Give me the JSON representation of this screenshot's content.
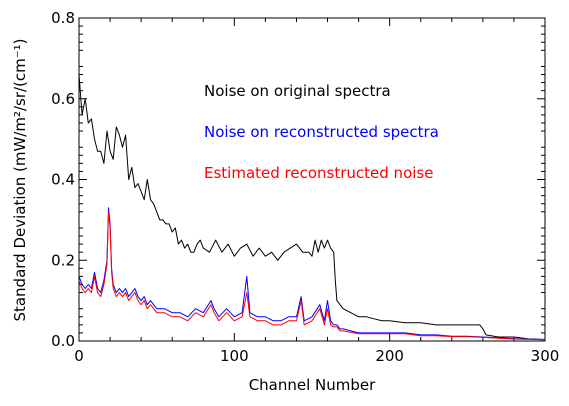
{
  "chart_data": {
    "type": "line",
    "xlabel": "Channel Number",
    "ylabel": "Standard Deviation (mW/m²/sr/(cm⁻¹)",
    "xlim": [
      0,
      300
    ],
    "ylim": [
      0,
      0.8
    ],
    "x_ticks": [
      0,
      100,
      200,
      300
    ],
    "x_tick_labels": [
      "0",
      "100",
      "200",
      "300"
    ],
    "y_ticks": [
      0,
      0.2,
      0.4,
      0.6,
      0.8
    ],
    "y_tick_labels": [
      "0.0",
      "0.2",
      "0.4",
      "0.6",
      "0.8"
    ],
    "grid": false,
    "legend_position": "inside-right, stacked text",
    "series": [
      {
        "name": "Noise on original spectra",
        "color": "#000000",
        "x": [
          0,
          2,
          4,
          6,
          8,
          10,
          12,
          14,
          16,
          18,
          20,
          22,
          24,
          26,
          28,
          30,
          32,
          34,
          36,
          38,
          40,
          42,
          44,
          46,
          48,
          50,
          52,
          54,
          56,
          58,
          60,
          62,
          64,
          66,
          68,
          70,
          72,
          74,
          76,
          78,
          80,
          84,
          88,
          92,
          96,
          100,
          104,
          108,
          112,
          116,
          120,
          124,
          128,
          132,
          136,
          140,
          144,
          148,
          150,
          152,
          154,
          156,
          158,
          160,
          162,
          164,
          165,
          166,
          170,
          175,
          180,
          185,
          190,
          195,
          200,
          210,
          220,
          230,
          240,
          250,
          258,
          260,
          262,
          270,
          280,
          290,
          300
        ],
        "y": [
          0.66,
          0.56,
          0.6,
          0.54,
          0.55,
          0.5,
          0.47,
          0.47,
          0.44,
          0.52,
          0.47,
          0.45,
          0.53,
          0.51,
          0.48,
          0.51,
          0.4,
          0.43,
          0.38,
          0.39,
          0.37,
          0.35,
          0.4,
          0.35,
          0.34,
          0.32,
          0.3,
          0.3,
          0.29,
          0.29,
          0.27,
          0.28,
          0.24,
          0.25,
          0.23,
          0.24,
          0.22,
          0.22,
          0.24,
          0.25,
          0.23,
          0.22,
          0.25,
          0.22,
          0.24,
          0.21,
          0.23,
          0.24,
          0.21,
          0.23,
          0.21,
          0.22,
          0.2,
          0.22,
          0.23,
          0.24,
          0.22,
          0.22,
          0.21,
          0.25,
          0.22,
          0.25,
          0.23,
          0.25,
          0.23,
          0.22,
          0.15,
          0.1,
          0.08,
          0.07,
          0.06,
          0.06,
          0.055,
          0.05,
          0.05,
          0.045,
          0.045,
          0.04,
          0.04,
          0.04,
          0.04,
          0.03,
          0.015,
          0.01,
          0.01,
          0.005,
          0.003
        ]
      },
      {
        "name": "Noise on reconstructed spectra",
        "color": "#0000ff",
        "x": [
          0,
          2,
          4,
          6,
          8,
          10,
          12,
          14,
          16,
          18,
          19,
          20,
          21,
          22,
          24,
          26,
          28,
          30,
          32,
          34,
          36,
          38,
          40,
          42,
          44,
          46,
          48,
          50,
          55,
          60,
          65,
          70,
          75,
          80,
          85,
          87,
          90,
          95,
          100,
          105,
          108,
          110,
          115,
          120,
          125,
          130,
          135,
          140,
          143,
          145,
          150,
          155,
          158,
          160,
          162,
          164,
          166,
          168,
          170,
          180,
          190,
          200,
          210,
          220,
          230,
          240,
          250,
          260,
          270,
          280,
          290,
          300
        ],
        "y": [
          0.16,
          0.14,
          0.13,
          0.14,
          0.13,
          0.17,
          0.13,
          0.12,
          0.15,
          0.2,
          0.33,
          0.29,
          0.18,
          0.14,
          0.12,
          0.13,
          0.12,
          0.13,
          0.11,
          0.12,
          0.13,
          0.11,
          0.1,
          0.11,
          0.09,
          0.1,
          0.09,
          0.08,
          0.08,
          0.07,
          0.07,
          0.06,
          0.08,
          0.07,
          0.1,
          0.08,
          0.06,
          0.08,
          0.06,
          0.07,
          0.16,
          0.07,
          0.06,
          0.06,
          0.05,
          0.05,
          0.06,
          0.06,
          0.11,
          0.05,
          0.06,
          0.09,
          0.05,
          0.1,
          0.05,
          0.04,
          0.04,
          0.03,
          0.03,
          0.02,
          0.02,
          0.02,
          0.02,
          0.015,
          0.015,
          0.012,
          0.012,
          0.01,
          0.008,
          0.006,
          0.005,
          0.004
        ]
      },
      {
        "name": "Estimated reconstructed noise",
        "color": "#ff0000",
        "x": [
          0,
          2,
          4,
          6,
          8,
          10,
          12,
          14,
          16,
          18,
          19,
          20,
          21,
          22,
          24,
          26,
          28,
          30,
          32,
          34,
          36,
          38,
          40,
          42,
          44,
          46,
          48,
          50,
          55,
          60,
          65,
          70,
          75,
          80,
          85,
          87,
          90,
          95,
          100,
          105,
          108,
          110,
          115,
          120,
          125,
          130,
          135,
          140,
          143,
          145,
          150,
          155,
          158,
          160,
          162,
          164,
          166,
          168,
          170,
          180,
          190,
          200,
          210,
          220,
          230,
          240,
          250,
          260,
          270,
          280,
          290,
          300
        ],
        "y": [
          0.15,
          0.13,
          0.12,
          0.13,
          0.12,
          0.16,
          0.12,
          0.11,
          0.14,
          0.19,
          0.32,
          0.28,
          0.17,
          0.13,
          0.11,
          0.12,
          0.11,
          0.12,
          0.1,
          0.11,
          0.12,
          0.1,
          0.09,
          0.1,
          0.08,
          0.09,
          0.08,
          0.07,
          0.07,
          0.06,
          0.06,
          0.05,
          0.07,
          0.06,
          0.09,
          0.07,
          0.05,
          0.07,
          0.05,
          0.06,
          0.12,
          0.06,
          0.05,
          0.05,
          0.04,
          0.04,
          0.05,
          0.05,
          0.1,
          0.04,
          0.05,
          0.08,
          0.04,
          0.08,
          0.04,
          0.035,
          0.035,
          0.025,
          0.025,
          0.018,
          0.018,
          0.018,
          0.018,
          0.013,
          0.013,
          0.011,
          0.011,
          0.009,
          0.007,
          0.005,
          0.004,
          0.003
        ]
      }
    ]
  }
}
